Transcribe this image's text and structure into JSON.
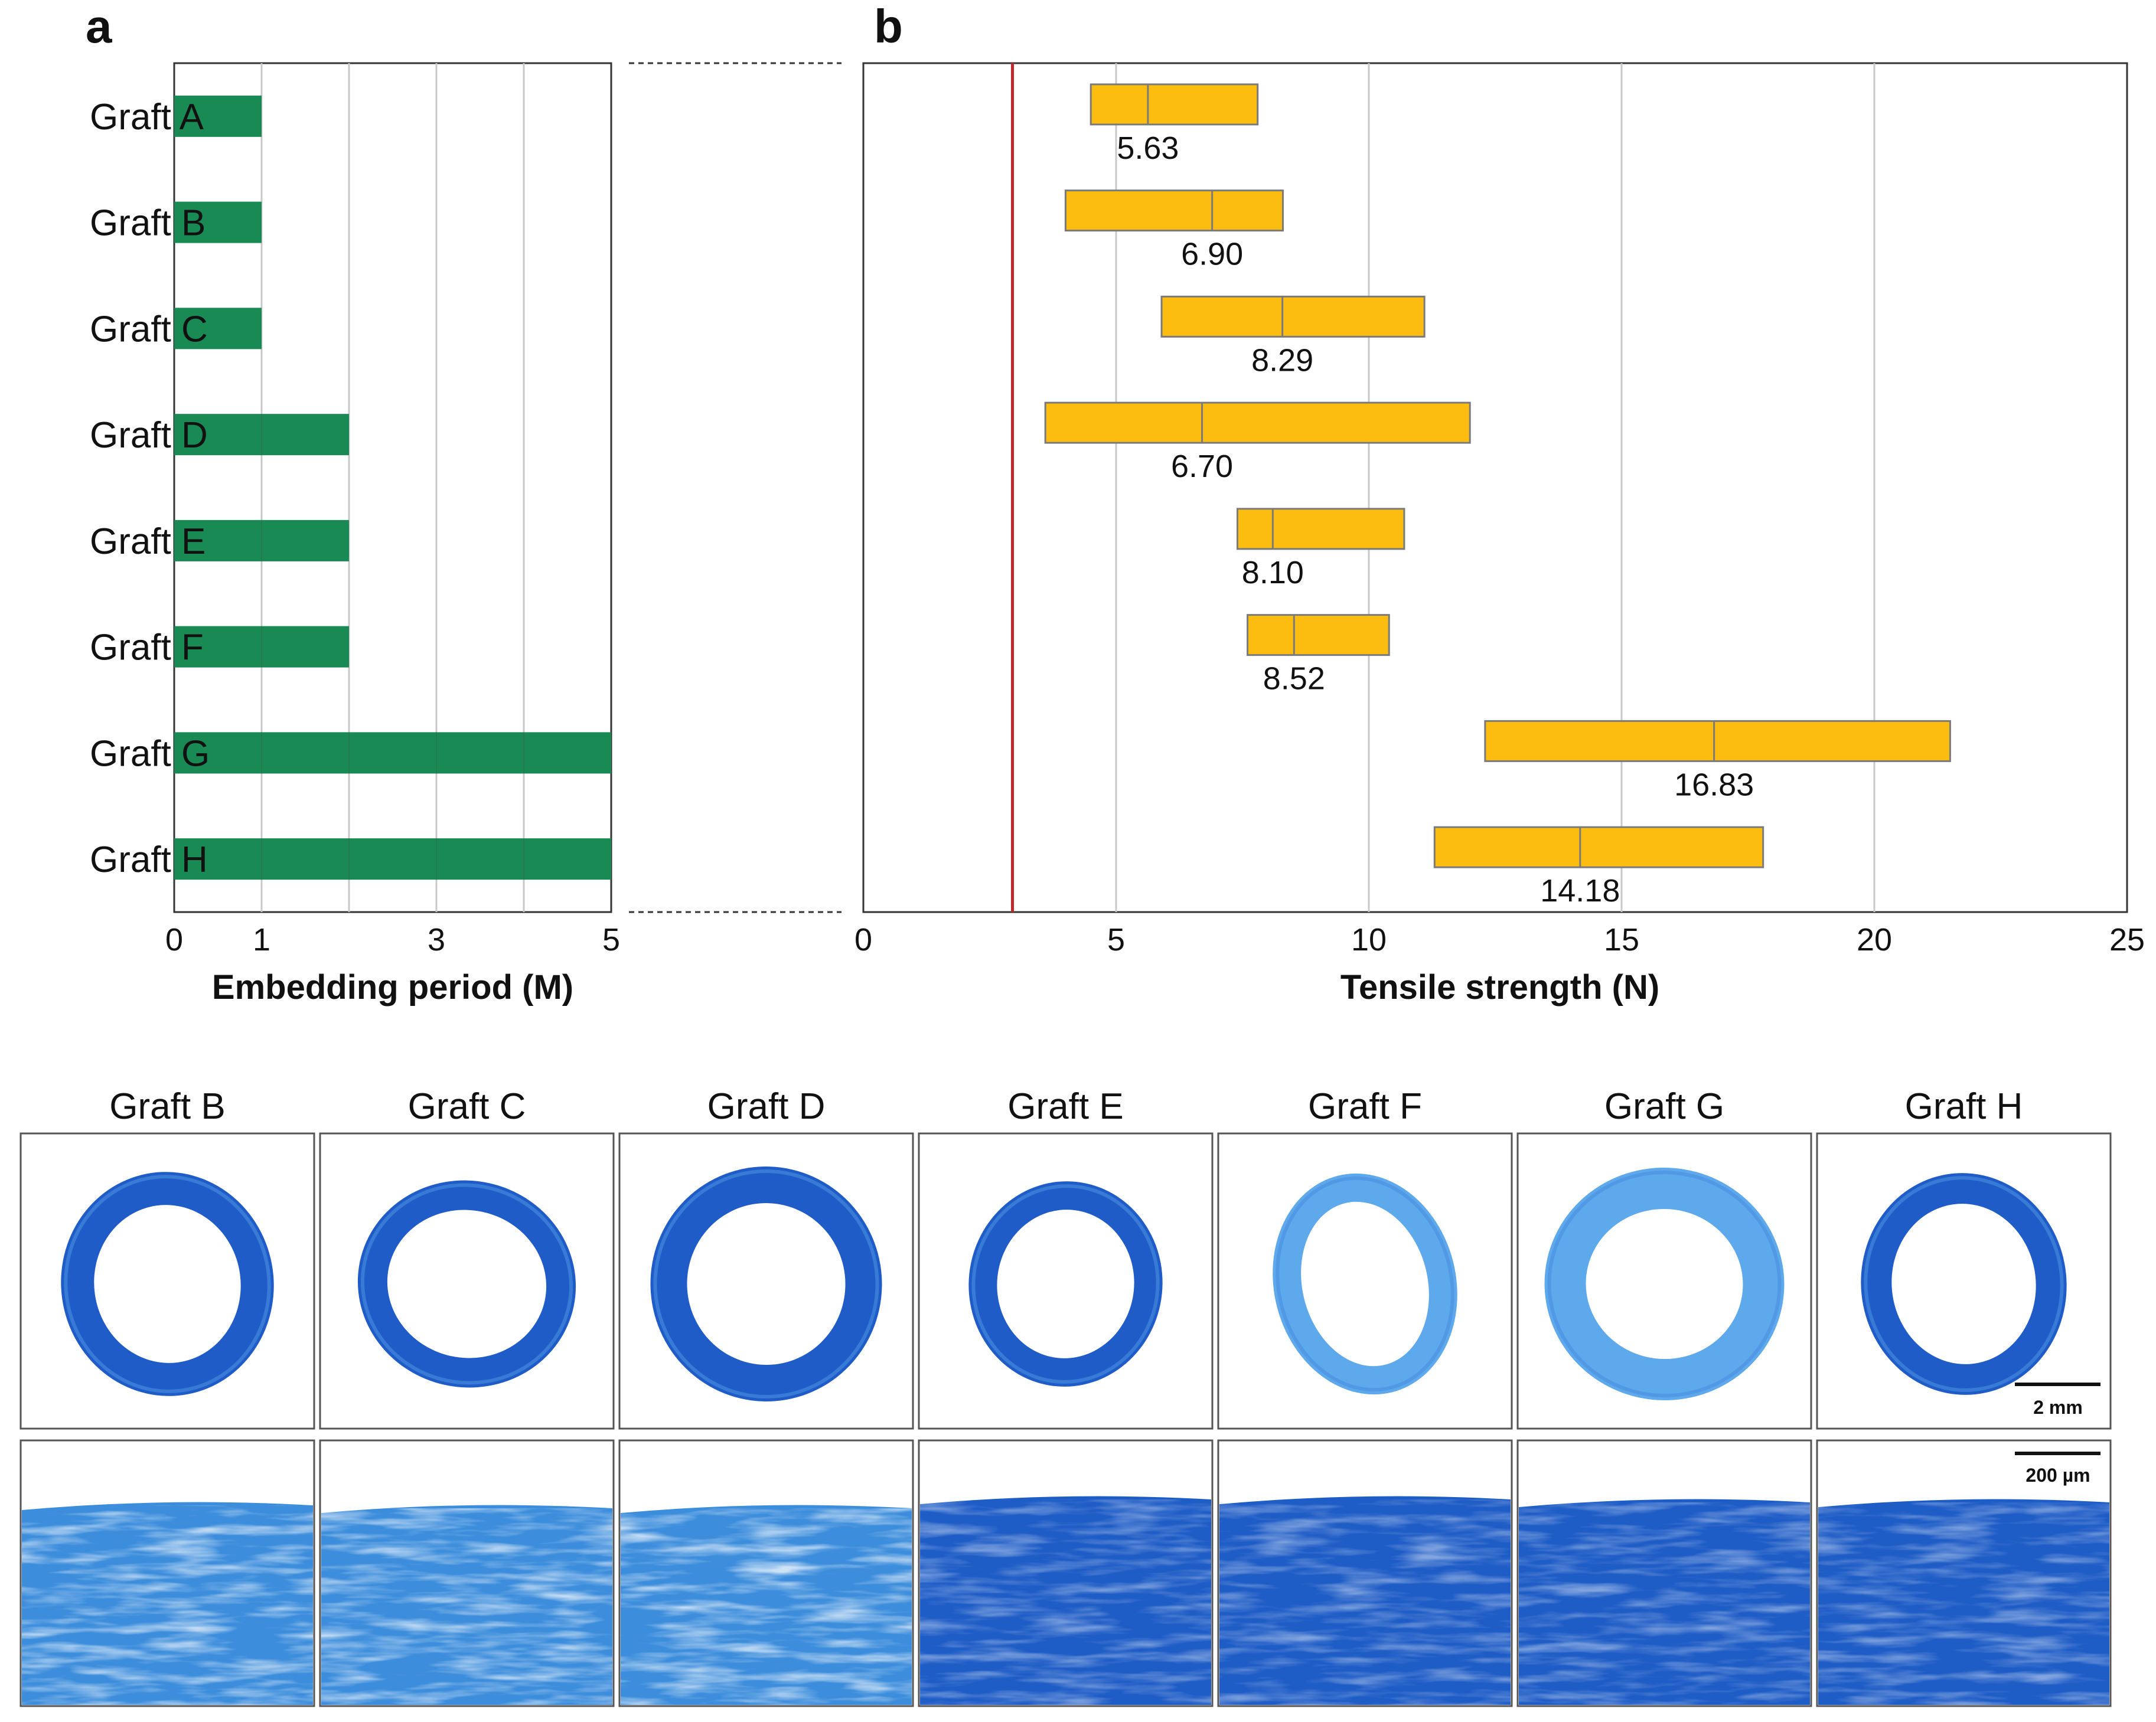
{
  "panels": {
    "a": "a",
    "b": "b"
  },
  "colors": {
    "embed_bar": "#1a8a55",
    "tensile_box": "#fdbd10",
    "tensile_box_edge": "#7a7a7a",
    "threshold_line": "#c0282d",
    "grid": "#c8c8c8",
    "stain_dark": "#1f5cc8",
    "stain_light": "#5ea8ec"
  },
  "chart_data": [
    {
      "type": "bar",
      "orientation": "horizontal",
      "panel": "a",
      "categories": [
        "Graft A",
        "Graft B",
        "Graft C",
        "Graft D",
        "Graft E",
        "Graft F",
        "Graft G",
        "Graft H"
      ],
      "values": [
        1,
        1,
        1,
        2,
        2,
        2,
        5,
        5
      ],
      "xlabel": "Embedding period (M)",
      "xlim": [
        0,
        5
      ],
      "xticks": [
        0,
        1,
        3,
        5
      ],
      "gridlines_at": [
        1,
        2,
        3,
        4
      ],
      "grid": true
    },
    {
      "type": "box",
      "orientation": "horizontal",
      "panel": "b",
      "categories": [
        "Graft A",
        "Graft B",
        "Graft C",
        "Graft D",
        "Graft E",
        "Graft F",
        "Graft G",
        "Graft H"
      ],
      "series": [
        {
          "name": "Graft A",
          "low": 4.5,
          "median": 5.63,
          "high": 7.8
        },
        {
          "name": "Graft B",
          "low": 4.0,
          "median": 6.9,
          "high": 8.3
        },
        {
          "name": "Graft C",
          "low": 5.9,
          "median": 8.29,
          "high": 11.1
        },
        {
          "name": "Graft D",
          "low": 3.6,
          "median": 6.7,
          "high": 12.0
        },
        {
          "name": "Graft E",
          "low": 7.4,
          "median": 8.1,
          "high": 10.7
        },
        {
          "name": "Graft F",
          "low": 7.6,
          "median": 8.52,
          "high": 10.4
        },
        {
          "name": "Graft G",
          "low": 12.3,
          "median": 16.83,
          "high": 21.5
        },
        {
          "name": "Graft H",
          "low": 11.3,
          "median": 14.18,
          "high": 17.8
        }
      ],
      "median_labels": [
        "5.63",
        "6.90",
        "8.29",
        "6.70",
        "8.10",
        "8.52",
        "16.83",
        "14.18"
      ],
      "reference_line": 2.95,
      "xlabel": "Tensile strength (N)",
      "xlim": [
        0,
        25
      ],
      "xticks": [
        0,
        5,
        10,
        15,
        20,
        25
      ],
      "gridlines_at": [
        5,
        10,
        15,
        20
      ],
      "grid": true
    }
  ],
  "histology": {
    "columns": [
      "Graft B",
      "Graft C",
      "Graft D",
      "Graft E",
      "Graft F",
      "Graft G",
      "Graft H"
    ],
    "scale_bar_low": "2 mm",
    "scale_bar_high": "200 µm"
  }
}
